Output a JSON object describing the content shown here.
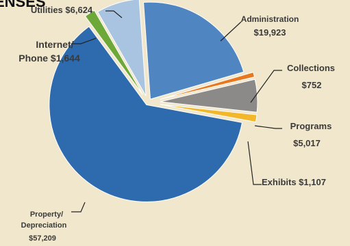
{
  "chart_data": {
    "type": "pie",
    "title": "ENSES",
    "exploded": true,
    "slices": [
      {
        "name": "Administration",
        "value": 19923,
        "label_lines": [
          "Administration",
          "$19,923"
        ],
        "color": "#4f86c2"
      },
      {
        "name": "Collections",
        "value": 752,
        "label_lines": [
          "Collections",
          "$752"
        ],
        "color": "#e8781f"
      },
      {
        "name": "Programs",
        "value": 5017,
        "label_lines": [
          "Programs",
          "$5,017"
        ],
        "color": "#8c8a88"
      },
      {
        "name": "Exhibits",
        "value": 1107,
        "label_lines": [
          "Exhibits $1,107"
        ],
        "color": "#f2b72a"
      },
      {
        "name": "Property/Depreciation",
        "value": 57209,
        "label_lines": [
          "Property/",
          "Depreciation",
          "$57,209"
        ],
        "color": "#2d6aae"
      },
      {
        "name": "Internet/Phone",
        "value": 1644,
        "label_lines": [
          "Internet/",
          "Phone $1,644"
        ],
        "color": "#6ea838"
      },
      {
        "name": "Utilities",
        "value": 6624,
        "label_lines": [
          "Utilities $6,624"
        ],
        "color": "#a8c4e0"
      }
    ]
  }
}
